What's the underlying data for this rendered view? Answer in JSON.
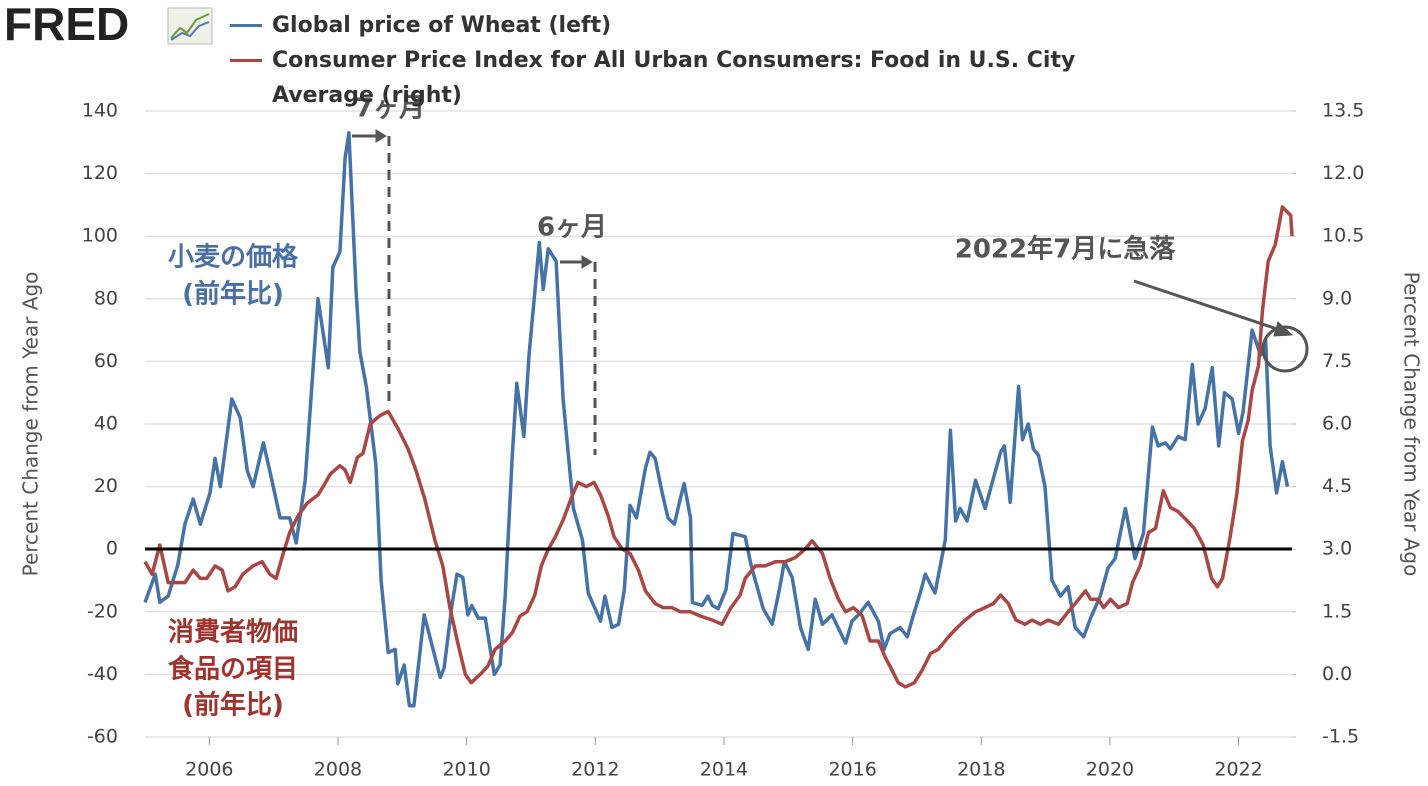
{
  "chart_data": {
    "type": "line",
    "brand": "FRED",
    "ylabel": "Percent Change from Year Ago",
    "y2label": "Percent Change from Year Ago",
    "xlim": [
      2005,
      2022.83
    ],
    "xticks": [
      2006,
      2008,
      2010,
      2012,
      2014,
      2016,
      2018,
      2020,
      2022
    ],
    "ylim": [
      -60,
      140
    ],
    "yticks": [
      -60,
      -40,
      -20,
      0,
      20,
      40,
      60,
      80,
      100,
      120,
      140
    ],
    "y2lim": [
      -1.5,
      13.5
    ],
    "y2ticks": [
      -1.5,
      {
        "value": 0,
        "label": "0.0"
      },
      1.5,
      {
        "value": 3,
        "label": "3.0"
      },
      4.5,
      {
        "value": 6,
        "label": "6.0"
      },
      7.5,
      {
        "value": 9,
        "label": "9.0"
      },
      10.5,
      {
        "value": 12,
        "label": "12.0"
      },
      13.5
    ],
    "grid": true,
    "annotations": [
      "7ヶ月",
      "6ヶ月",
      "2022年7月に急落"
    ],
    "series_labels": [
      [
        "小麦の価格",
        "(前年比)"
      ],
      [
        "消費者物価",
        "食品の項目",
        "(前年比)"
      ]
    ],
    "series": [
      {
        "name": "Global price of Wheat (left)",
        "color": "#4572a7",
        "axis": "y",
        "x": [
          2005.0,
          2005.16,
          2005.23,
          2005.36,
          2005.51,
          2005.62,
          2005.75,
          2005.86,
          2006.01,
          2006.09,
          2006.17,
          2006.35,
          2006.48,
          2006.59,
          2006.68,
          2006.84,
          2006.94,
          2007.1,
          2007.25,
          2007.35,
          2007.49,
          2007.69,
          2007.85,
          2007.92,
          2008.03,
          2008.11,
          2008.17,
          2008.28,
          2008.34,
          2008.44,
          2008.59,
          2008.67,
          2008.78,
          2008.89,
          2008.93,
          2009.03,
          2009.11,
          2009.18,
          2009.34,
          2009.59,
          2009.65,
          2009.77,
          2009.85,
          2009.94,
          2010.02,
          2010.08,
          2010.18,
          2010.29,
          2010.43,
          2010.52,
          2010.6,
          2010.71,
          2010.78,
          2010.89,
          2010.97,
          2011.05,
          2011.13,
          2011.19,
          2011.27,
          2011.39,
          2011.5,
          2011.66,
          2011.8,
          2011.89,
          2012.08,
          2012.15,
          2012.26,
          2012.36,
          2012.45,
          2012.54,
          2012.64,
          2012.78,
          2012.85,
          2012.93,
          2013.04,
          2013.13,
          2013.23,
          2013.32,
          2013.38,
          2013.48,
          2013.51,
          2013.66,
          2013.75,
          2013.82,
          2013.91,
          2014.03,
          2014.14,
          2014.33,
          2014.42,
          2014.61,
          2014.75,
          2014.87,
          2014.94,
          2015.06,
          2015.19,
          2015.31,
          2015.42,
          2015.53,
          2015.68,
          2015.89,
          2015.99,
          2016.09,
          2016.24,
          2016.4,
          2016.49,
          2016.58,
          2016.74,
          2016.85,
          2016.93,
          2017.05,
          2017.13,
          2017.28,
          2017.44,
          2017.52,
          2017.6,
          2017.67,
          2017.78,
          2017.91,
          2018.06,
          2018.3,
          2018.36,
          2018.45,
          2018.58,
          2018.64,
          2018.73,
          2018.81,
          2018.89,
          2018.99,
          2019.1,
          2019.23,
          2019.35,
          2019.46,
          2019.59,
          2019.7,
          2019.85,
          2019.97,
          2020.08,
          2020.24,
          2020.39,
          2020.52,
          2020.66,
          2020.75,
          2020.86,
          2020.94,
          2021.06,
          2021.17,
          2021.28,
          2021.37,
          2021.48,
          2021.59,
          2021.69,
          2021.78,
          2021.9,
          2022.0,
          2022.07,
          2022.21,
          2022.34,
          2022.42,
          2022.49,
          2022.59,
          2022.68,
          2022.76
        ],
        "values": [
          -17,
          -8,
          -17,
          -15,
          -5,
          8,
          16,
          8,
          18,
          29,
          20,
          48,
          42,
          25,
          20,
          34,
          25,
          10,
          10,
          2,
          22,
          80,
          58,
          90,
          95,
          125,
          133,
          83,
          63,
          52,
          27,
          -10,
          -33,
          -32,
          -43,
          -37,
          -50,
          -50,
          -21,
          -41,
          -38,
          -18,
          -8,
          -9,
          -21,
          -18,
          -22,
          -22,
          -40,
          -37,
          -15,
          30,
          53,
          36,
          62,
          80,
          98,
          83,
          96,
          92,
          48,
          13,
          3,
          -14,
          -23,
          -15,
          -25,
          -24,
          -13,
          14,
          10,
          26,
          31,
          29,
          18,
          10,
          8,
          16,
          21,
          10,
          -17,
          -18,
          -15,
          -18,
          -19,
          -13,
          5,
          4,
          -5,
          -19,
          -24,
          -12,
          -4,
          -9,
          -25,
          -32,
          -16,
          -24,
          -21,
          -30,
          -23,
          -21,
          -17,
          -23,
          -32,
          -27,
          -25,
          -28,
          -22,
          -14,
          -8,
          -14,
          3,
          38,
          9,
          13,
          9,
          22,
          13,
          31,
          33,
          15,
          52,
          35,
          40,
          32,
          30,
          20,
          -10,
          -15,
          -12,
          -25,
          -28,
          -22,
          -15,
          -6,
          -3,
          13,
          -3,
          5,
          39,
          33,
          34,
          32,
          36,
          35,
          59,
          40,
          45,
          58,
          33,
          50,
          48,
          37,
          44,
          70,
          62,
          67,
          33,
          18,
          28,
          20
        ]
      },
      {
        "name": "Consumer Price Index for All Urban Consumers: Food in U.S. City Average (right)",
        "color": "#aa4643",
        "axis": "y2",
        "x": [
          2005.0,
          2005.11,
          2005.23,
          2005.36,
          2005.51,
          2005.62,
          2005.75,
          2005.86,
          2005.96,
          2006.09,
          2006.2,
          2006.29,
          2006.4,
          2006.52,
          2006.68,
          2006.82,
          2006.94,
          2007.04,
          2007.13,
          2007.25,
          2007.38,
          2007.52,
          2007.69,
          2007.77,
          2007.88,
          2008.03,
          2008.11,
          2008.19,
          2008.3,
          2008.39,
          2008.5,
          2008.65,
          2008.78,
          2008.93,
          2009.09,
          2009.21,
          2009.35,
          2009.51,
          2009.63,
          2009.74,
          2009.87,
          2009.98,
          2010.07,
          2010.21,
          2010.33,
          2010.44,
          2010.6,
          2010.71,
          2010.83,
          2010.94,
          2011.06,
          2011.16,
          2011.27,
          2011.38,
          2011.5,
          2011.62,
          2011.73,
          2011.86,
          2011.98,
          2012.08,
          2012.2,
          2012.29,
          2012.42,
          2012.54,
          2012.67,
          2012.78,
          2012.93,
          2013.05,
          2013.19,
          2013.32,
          2013.48,
          2013.63,
          2013.82,
          2013.97,
          2014.11,
          2014.25,
          2014.33,
          2014.49,
          2014.64,
          2014.8,
          2014.95,
          2015.11,
          2015.26,
          2015.37,
          2015.53,
          2015.65,
          2015.78,
          2015.89,
          2016.01,
          2016.15,
          2016.27,
          2016.4,
          2016.51,
          2016.58,
          2016.71,
          2016.82,
          2016.96,
          2017.08,
          2017.21,
          2017.33,
          2017.49,
          2017.61,
          2017.75,
          2017.91,
          2018.06,
          2018.19,
          2018.3,
          2018.42,
          2018.54,
          2018.68,
          2018.79,
          2018.92,
          2019.04,
          2019.2,
          2019.35,
          2019.46,
          2019.62,
          2019.7,
          2019.82,
          2019.9,
          2020.01,
          2020.13,
          2020.27,
          2020.35,
          2020.47,
          2020.6,
          2020.71,
          2020.83,
          2020.94,
          2021.06,
          2021.19,
          2021.31,
          2021.45,
          2021.58,
          2021.67,
          2021.75,
          2021.87,
          2021.97,
          2022.06,
          2022.15,
          2022.21,
          2022.31,
          2022.37,
          2022.46,
          2022.57,
          2022.68,
          2022.81,
          2022.83
        ],
        "values": [
          2.7,
          2.4,
          3.1,
          2.2,
          2.2,
          2.2,
          2.5,
          2.3,
          2.3,
          2.6,
          2.5,
          2.0,
          2.1,
          2.4,
          2.6,
          2.7,
          2.4,
          2.3,
          2.8,
          3.4,
          3.8,
          4.1,
          4.3,
          4.5,
          4.8,
          5.0,
          4.9,
          4.6,
          5.2,
          5.3,
          6.0,
          6.2,
          6.3,
          5.9,
          5.4,
          4.9,
          4.2,
          3.2,
          2.6,
          1.6,
          0.7,
          0.0,
          -0.2,
          0.0,
          0.2,
          0.6,
          0.8,
          1.0,
          1.4,
          1.5,
          1.9,
          2.6,
          3.0,
          3.3,
          3.7,
          4.2,
          4.6,
          4.5,
          4.6,
          4.3,
          3.8,
          3.3,
          3.0,
          2.9,
          2.5,
          2.0,
          1.7,
          1.6,
          1.6,
          1.5,
          1.5,
          1.4,
          1.3,
          1.2,
          1.6,
          1.9,
          2.3,
          2.6,
          2.6,
          2.7,
          2.7,
          2.8,
          3.0,
          3.2,
          2.9,
          2.3,
          1.8,
          1.5,
          1.6,
          1.4,
          0.8,
          0.8,
          0.4,
          0.2,
          -0.2,
          -0.3,
          -0.2,
          0.1,
          0.5,
          0.6,
          0.9,
          1.1,
          1.3,
          1.5,
          1.6,
          1.7,
          1.9,
          1.7,
          1.3,
          1.2,
          1.3,
          1.2,
          1.3,
          1.2,
          1.5,
          1.7,
          2.0,
          1.8,
          1.8,
          1.6,
          1.8,
          1.6,
          1.7,
          2.2,
          2.6,
          3.4,
          3.5,
          4.4,
          4.0,
          3.9,
          3.7,
          3.5,
          3.1,
          2.3,
          2.1,
          2.3,
          3.3,
          4.3,
          5.6,
          6.1,
          6.8,
          7.4,
          8.7,
          9.9,
          10.3,
          11.2,
          11.0,
          10.5
        ]
      }
    ]
  }
}
